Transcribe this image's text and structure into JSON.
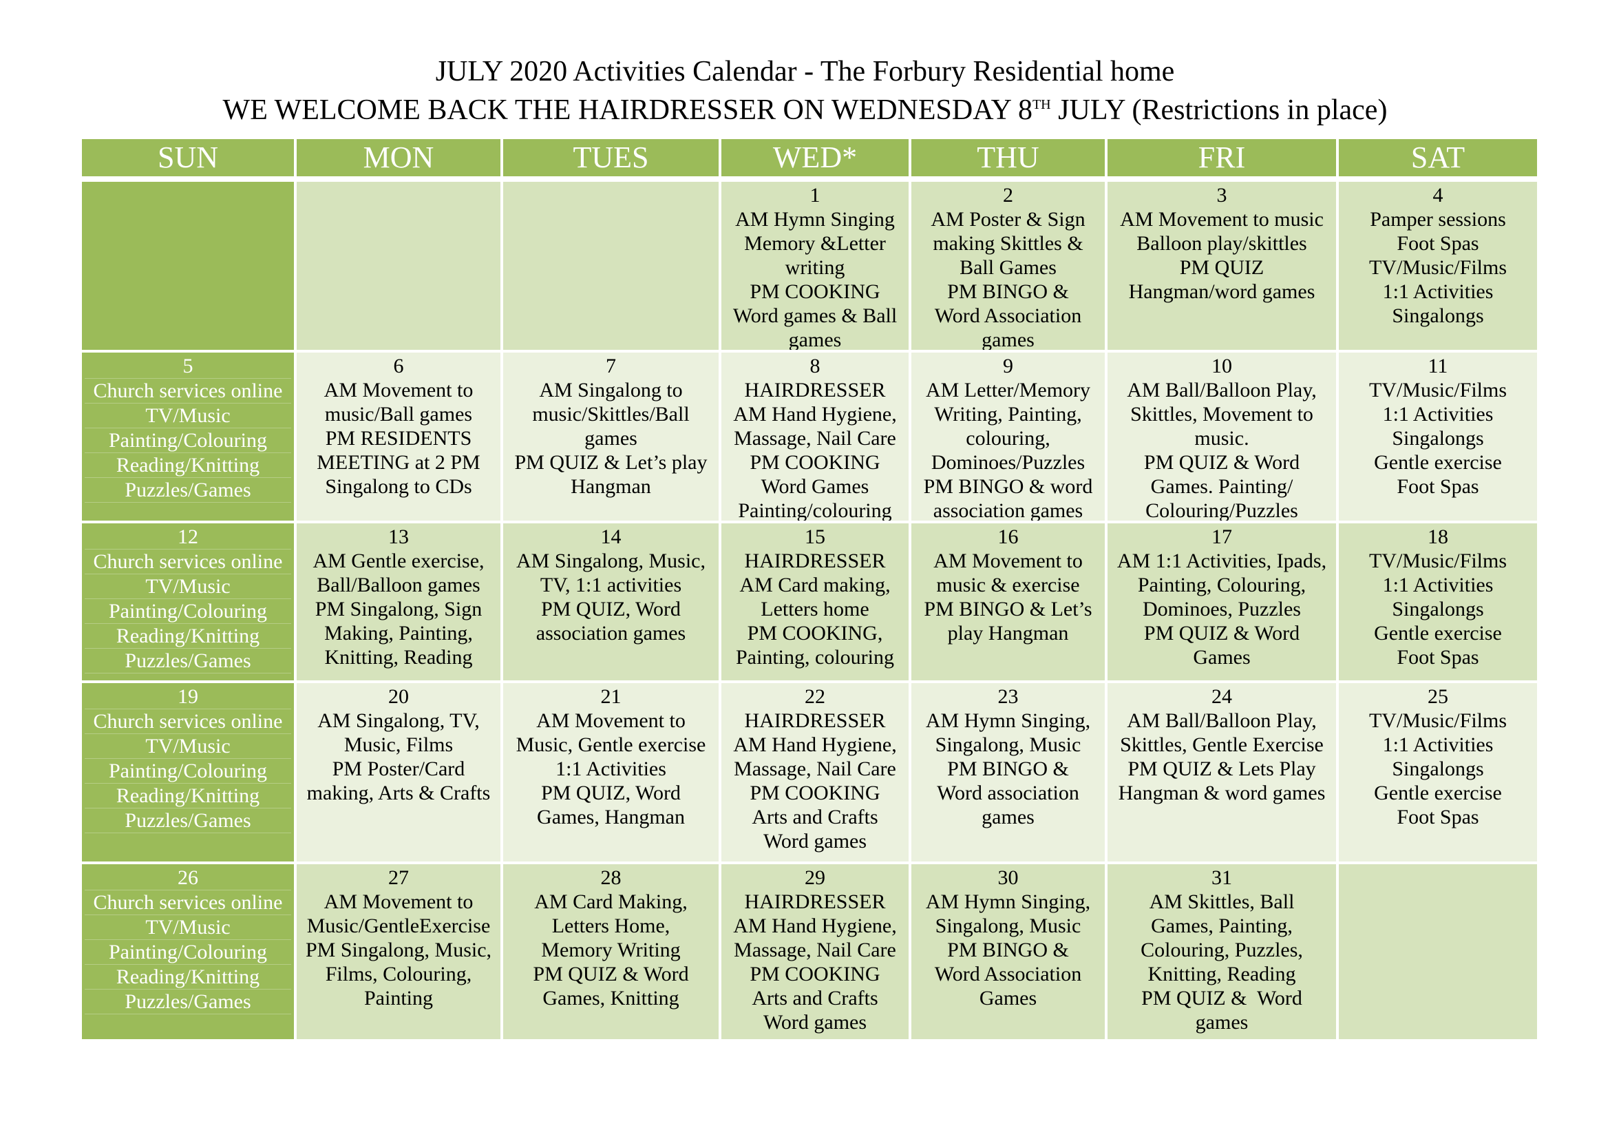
{
  "header": {
    "title": "JULY 2020 Activities Calendar - The Forbury Residential home",
    "subtitle": {
      "before": "WE WELCOME BACK THE HAIRDRESSER ON WEDNESDAY 8",
      "sup": "TH",
      "after": " JULY (Restrictions in place)"
    }
  },
  "days": [
    "SUN",
    "MON",
    "TUES",
    "WED*",
    "THU",
    "FRI",
    "SAT"
  ],
  "weeks": [
    [
      null,
      null,
      null,
      {
        "date": 1,
        "lines": [
          "AM Hymn Singing",
          "Memory &Letter",
          "writing",
          "PM COOKING",
          "Word games & Ball",
          "games"
        ]
      },
      {
        "date": 2,
        "lines": [
          "AM Poster & Sign",
          "making Skittles &",
          "Ball Games",
          "PM BINGO &",
          "Word Association",
          "games"
        ]
      },
      {
        "date": 3,
        "lines": [
          "AM Movement to music",
          "Balloon play/skittles",
          "PM QUIZ",
          "Hangman/word games"
        ]
      },
      {
        "date": 4,
        "lines": [
          "Pamper sessions",
          "Foot Spas",
          "TV/Music/Films",
          "1:1 Activities",
          "Singalongs"
        ]
      }
    ],
    [
      {
        "date": 5,
        "lines": [
          "Church services online",
          "TV/Music",
          "Painting/Colouring",
          "Reading/Knitting",
          "Puzzles/Games"
        ]
      },
      {
        "date": 6,
        "lines": [
          "AM Movement to",
          "music/Ball games",
          "PM RESIDENTS",
          "MEETING at 2 PM",
          "Singalong to CDs"
        ]
      },
      {
        "date": 7,
        "lines": [
          "AM Singalong to",
          "music/Skittles/Ball",
          "games",
          "PM QUIZ & Let’s play",
          "Hangman"
        ]
      },
      {
        "date": 8,
        "lines": [
          "HAIRDRESSER",
          "AM Hand Hygiene,",
          "Massage, Nail Care",
          "PM COOKING",
          "Word Games",
          "Painting/colouring"
        ]
      },
      {
        "date": 9,
        "lines": [
          "AM Letter/Memory",
          "Writing, Painting,",
          "colouring,",
          "Dominoes/Puzzles",
          "PM BINGO & word",
          "association games"
        ]
      },
      {
        "date": 10,
        "lines": [
          "AM Ball/Balloon Play,",
          "Skittles, Movement to",
          "music.",
          "PM QUIZ & Word",
          "Games. Painting/",
          "Colouring/Puzzles"
        ]
      },
      {
        "date": 11,
        "lines": [
          "TV/Music/Films",
          "1:1 Activities",
          "Singalongs",
          "Gentle exercise",
          "Foot Spas"
        ]
      }
    ],
    [
      {
        "date": 12,
        "lines": [
          "Church services online",
          "TV/Music",
          "Painting/Colouring",
          "Reading/Knitting",
          "Puzzles/Games"
        ]
      },
      {
        "date": 13,
        "lines": [
          "AM Gentle exercise,",
          "Ball/Balloon games",
          "PM Singalong, Sign",
          "Making, Painting,",
          "Knitting, Reading"
        ]
      },
      {
        "date": 14,
        "lines": [
          "AM Singalong, Music,",
          "TV, 1:1 activities",
          "PM QUIZ, Word",
          "association games"
        ]
      },
      {
        "date": 15,
        "lines": [
          "HAIRDRESSER",
          "AM Card making,",
          "Letters home",
          "PM COOKING,",
          "Painting, colouring"
        ]
      },
      {
        "date": 16,
        "lines": [
          "AM Movement to",
          "music & exercise",
          "PM BINGO & Let’s",
          "play Hangman"
        ]
      },
      {
        "date": 17,
        "lines": [
          "AM 1:1 Activities, Ipads,",
          "Painting, Colouring,",
          "Dominoes, Puzzles",
          "PM QUIZ & Word",
          "Games"
        ]
      },
      {
        "date": 18,
        "lines": [
          "TV/Music/Films",
          "1:1 Activities",
          "Singalongs",
          "Gentle exercise",
          "Foot Spas"
        ]
      }
    ],
    [
      {
        "date": 19,
        "lines": [
          "Church services online",
          "TV/Music",
          "Painting/Colouring",
          "Reading/Knitting",
          "Puzzles/Games"
        ]
      },
      {
        "date": 20,
        "lines": [
          "AM Singalong, TV,",
          "Music, Films",
          "PM Poster/Card",
          "making, Arts & Crafts"
        ]
      },
      {
        "date": 21,
        "lines": [
          "AM Movement to",
          "Music, Gentle exercise",
          "1:1 Activities",
          "PM QUIZ, Word",
          "Games, Hangman"
        ]
      },
      {
        "date": 22,
        "lines": [
          "HAIRDRESSER",
          "AM Hand Hygiene,",
          "Massage, Nail Care",
          "PM COOKING",
          "Arts and Crafts",
          "Word games"
        ]
      },
      {
        "date": 23,
        "lines": [
          "AM Hymn Singing,",
          "Singalong, Music",
          "PM BINGO &",
          "Word association",
          "games"
        ]
      },
      {
        "date": 24,
        "lines": [
          "AM Ball/Balloon Play,",
          "Skittles, Gentle Exercise",
          "PM QUIZ & Lets Play",
          "Hangman & word games"
        ]
      },
      {
        "date": 25,
        "lines": [
          "TV/Music/Films",
          "1:1 Activities",
          "Singalongs",
          "Gentle exercise",
          "Foot Spas"
        ]
      }
    ],
    [
      {
        "date": 26,
        "lines": [
          "Church services online",
          "TV/Music",
          "Painting/Colouring",
          "Reading/Knitting",
          "Puzzles/Games"
        ]
      },
      {
        "date": 27,
        "lines": [
          "AM Movement to",
          "Music/GentleExercise",
          "PM Singalong, Music,",
          "Films, Colouring,",
          "Painting"
        ]
      },
      {
        "date": 28,
        "lines": [
          "AM Card Making,",
          "Letters Home,",
          "Memory Writing",
          "PM QUIZ & Word",
          "Games, Knitting"
        ]
      },
      {
        "date": 29,
        "lines": [
          "HAIRDRESSER",
          "AM Hand Hygiene,",
          "Massage, Nail Care",
          "PM COOKING",
          "Arts and Crafts",
          "Word games"
        ]
      },
      {
        "date": 30,
        "lines": [
          "AM Hymn Singing,",
          "Singalong, Music",
          "PM BINGO &",
          "Word Association",
          "Games"
        ]
      },
      {
        "date": 31,
        "lines": [
          "AM Skittles, Ball",
          "Games, Painting,",
          "Colouring, Puzzles,",
          "Knitting, Reading",
          "PM QUIZ &  Word",
          "games"
        ]
      },
      null
    ]
  ]
}
